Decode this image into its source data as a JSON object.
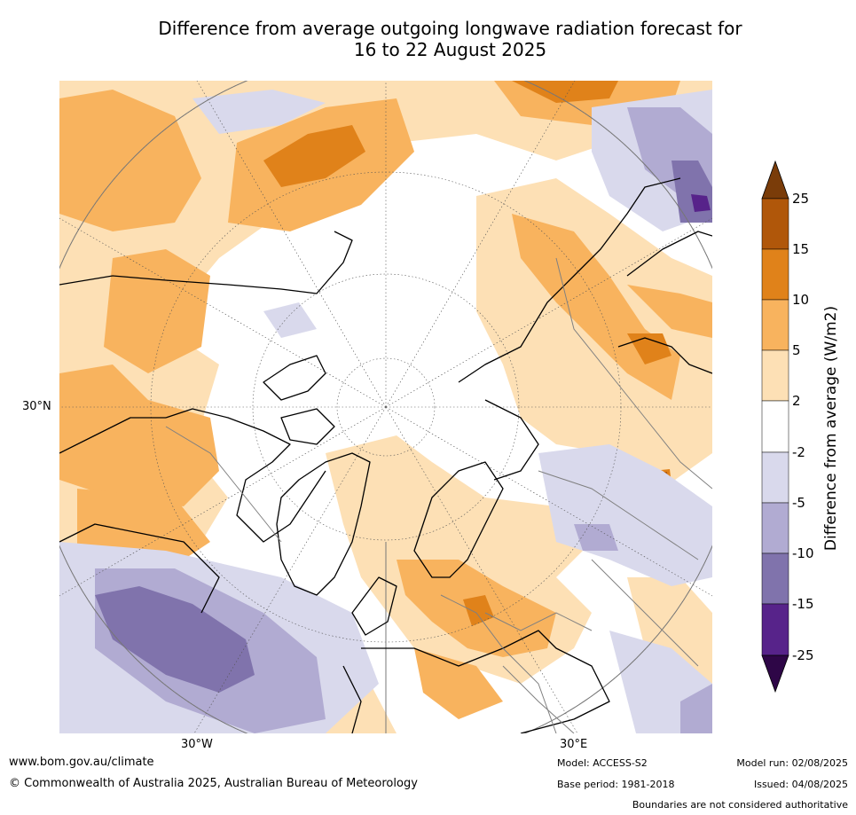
{
  "title": {
    "line1": "Difference from average outgoing longwave radiation forecast for",
    "line2": "16 to 22 August 2025"
  },
  "map": {
    "projection": "north-polar-stereographic",
    "lat_label": "30°N",
    "lon_labels": {
      "west": "30°W",
      "east": "30°E"
    }
  },
  "colorbar": {
    "label": "Difference from average (W/m2)",
    "ticks": [
      "25",
      "15",
      "10",
      "5",
      "2",
      "-2",
      "-5",
      "-10",
      "-15",
      "-25"
    ],
    "colors": {
      "above_25": "#7a3c09",
      "15_25": "#b0570a",
      "10_15": "#e0821a",
      "5_10": "#f8b35e",
      "2_5": "#fde0b5",
      "neutral": "#ffffff",
      "m5_m2": "#d9d9ec",
      "m10_m5": "#b1abd2",
      "m15_m10": "#8073ac",
      "m25_m15": "#57238a",
      "below_m25": "#2e0647"
    }
  },
  "footer": {
    "url": "www.bom.gov.au/climate",
    "copyright": "© Commonwealth of Australia 2025, Australian Bureau of Meteorology",
    "model": "Model: ACCESS-S2",
    "base_period": "Base period: 1981-2018",
    "model_run": "Model run: 02/08/2025",
    "issued": "Issued: 04/08/2025",
    "disclaimer": "Boundaries are not considered authoritative"
  }
}
